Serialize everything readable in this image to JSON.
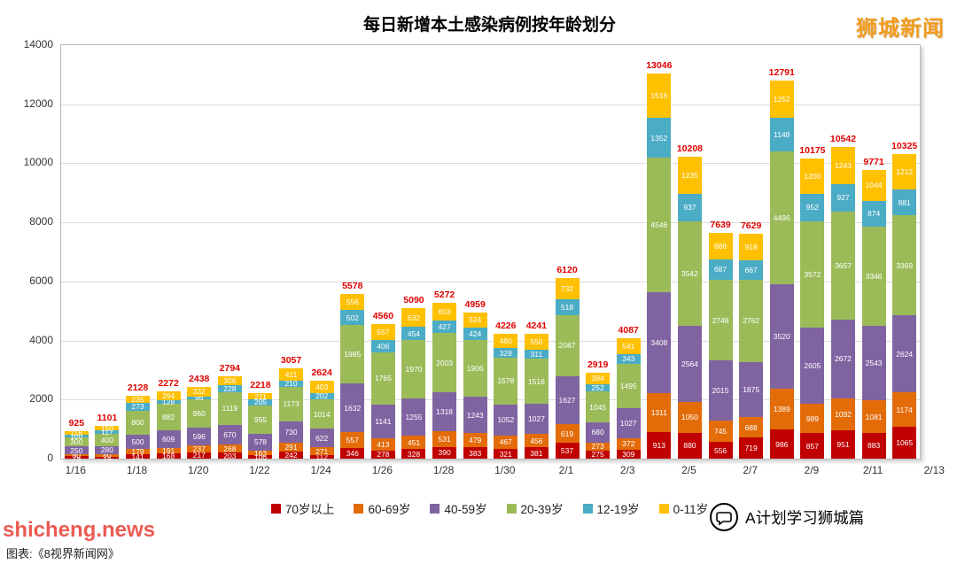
{
  "header": {
    "title": "每日新增本土感染病例按年龄划分",
    "brand": "狮城新闻"
  },
  "footer": {
    "watermark": "shicheng.news",
    "caption": "图表:《8视界新闻网》",
    "account": "A计划学习狮城篇"
  },
  "colors": {
    "total_label": "#E00000",
    "grid": "#DCDCDC",
    "axis_text": "#333333",
    "title": "#000000",
    "brand": "#F09C1E",
    "watermark": "#E8453A"
  },
  "chart_data": {
    "type": "bar",
    "stacked": true,
    "title": "每日新增本土感染病例按年龄划分",
    "xlabel": "",
    "ylabel": "",
    "ylim": [
      0,
      14000
    ],
    "y_ticks": [
      0,
      2000,
      4000,
      6000,
      8000,
      10000,
      12000,
      14000
    ],
    "grid": true,
    "legend_position": "bottom",
    "categories": [
      "1/16",
      "1/17",
      "1/18",
      "1/19",
      "1/20",
      "1/21",
      "1/22",
      "1/23",
      "1/24",
      "1/25",
      "1/26",
      "1/27",
      "1/28",
      "1/29",
      "1/30",
      "1/31",
      "2/1",
      "2/2",
      "2/3",
      "2/4",
      "2/5",
      "2/6",
      "2/7",
      "2/8",
      "2/9",
      "2/10",
      "2/11",
      "2/12"
    ],
    "x_tick_labels": [
      "1/16",
      "1/18",
      "1/20",
      "1/22",
      "1/24",
      "1/26",
      "1/28",
      "1/30",
      "2/1",
      "2/3",
      "2/5",
      "2/7",
      "2/9",
      "2/11",
      "2/13"
    ],
    "series": [
      {
        "name": "70岁以上",
        "color": "#C00000",
        "values": [
          79,
          74,
          141,
          168,
          217,
          203,
          106,
          242,
          112,
          346,
          278,
          328,
          390,
          383,
          321,
          381,
          537,
          275,
          309,
          913,
          880,
          556,
          719,
          986,
          857,
          951,
          883,
          1065
        ]
      },
      {
        "name": "60-69岁",
        "color": "#E36C09",
        "values": [
          80,
          80,
          179,
          191,
          237,
          268,
          163,
          291,
          271,
          557,
          413,
          451,
          531,
          479,
          467,
          456,
          619,
          273,
          372,
          1311,
          1050,
          745,
          688,
          1389,
          989,
          1092,
          1081,
          1174
        ]
      },
      {
        "name": "40-59岁",
        "color": "#8064A2",
        "values": [
          250,
          280,
          500,
          609,
          596,
          670,
          578,
          730,
          622,
          1632,
          1141,
          1255,
          1318,
          1243,
          1052,
          1027,
          1627,
          680,
          1027,
          3408,
          2564,
          2015,
          1875,
          3520,
          2605,
          2672,
          2543,
          2624
        ]
      },
      {
        "name": "20-39岁",
        "color": "#9BBB59",
        "values": [
          300,
          400,
          800,
          882,
          960,
          1119,
          955,
          1173,
          1014,
          1985,
          1765,
          1970,
          2003,
          1906,
          1578,
          1516,
          2087,
          1045,
          1495,
          4546,
          3542,
          2748,
          2762,
          4496,
          3572,
          3657,
          3346,
          3369
        ]
      },
      {
        "name": "12-19岁",
        "color": "#4BACC6",
        "values": [
          100,
          117,
          273,
          128,
          96,
          228,
          205,
          210,
          202,
          502,
          406,
          454,
          427,
          424,
          328,
          311,
          518,
          252,
          343,
          1352,
          937,
          687,
          667,
          1148,
          952,
          927,
          874,
          881
        ]
      },
      {
        "name": "0-11岁",
        "color": "#FFC000",
        "values": [
          116,
          150,
          235,
          294,
          332,
          306,
          211,
          411,
          403,
          556,
          557,
          632,
          603,
          524,
          480,
          550,
          732,
          394,
          541,
          1516,
          1235,
          888,
          918,
          1252,
          1200,
          1243,
          1044,
          1212
        ]
      }
    ],
    "totals": [
      925,
      1101,
      2128,
      2272,
      2438,
      2794,
      2218,
      3057,
      2624,
      5578,
      4560,
      5090,
      5272,
      4959,
      4226,
      4241,
      6120,
      2919,
      4087,
      13046,
      10208,
      7639,
      7629,
      12791,
      10175,
      10542,
      9771,
      10325
    ]
  }
}
